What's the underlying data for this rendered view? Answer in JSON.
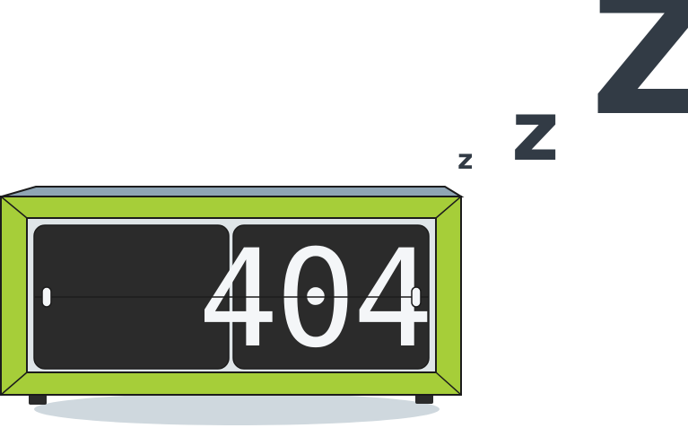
{
  "error_code": "404",
  "sleep": {
    "small": "z",
    "medium": "z",
    "large": "Z"
  },
  "colors": {
    "clock_frame": "#a6ce39",
    "clock_top": "#8fa5b4",
    "flip_panel": "#2b2b2b",
    "digits": "#f4f6f8",
    "zz": "#323b45",
    "shadow": "#cfd8de"
  },
  "icons": {
    "illustration": "sleeping-flip-clock"
  }
}
